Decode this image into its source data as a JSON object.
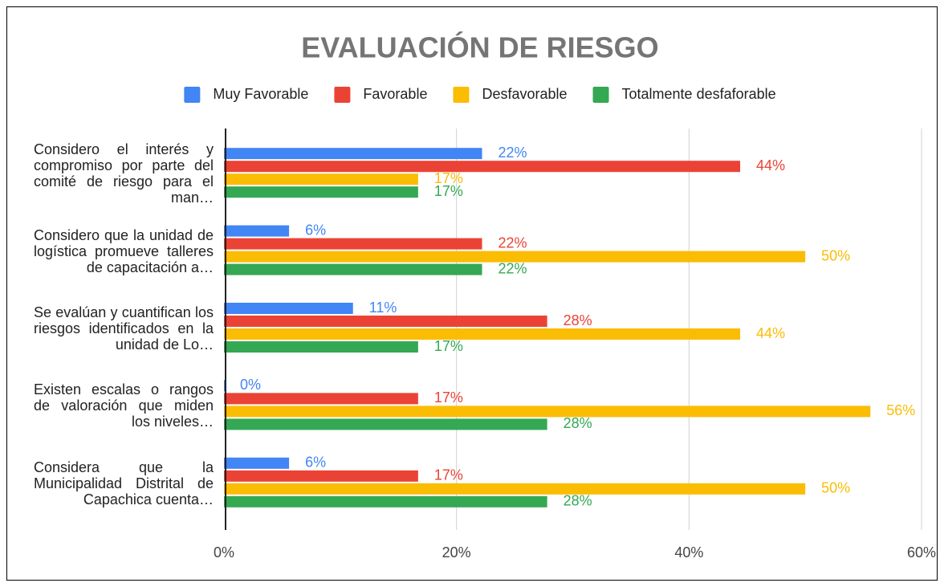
{
  "chart_data": {
    "type": "hbar",
    "title": "EVALUACIÓN DE RIESGO",
    "categories": [
      "Considero el interés y compromiso por parte del comité de riesgo para el man…",
      "Considero que la unidad de logística promueve talleres de capacitación a…",
      "Se evalúan y cuantifican los riesgos identificados en la unidad de Lo…",
      "Existen escalas o rangos de valoración que miden los niveles…",
      "Considera que la Municipalidad Distrital de Capachica cuenta…"
    ],
    "series": [
      {
        "name": "Muy Favorable",
        "color": "#4285f4",
        "values": [
          22.2,
          5.6,
          11.1,
          0,
          5.6
        ],
        "value_labels": [
          "22%",
          "6%",
          "11%",
          "0%",
          "6%"
        ]
      },
      {
        "name": "Favorable",
        "color": "#ea4335",
        "values": [
          44.4,
          22.2,
          27.8,
          16.7,
          16.7
        ],
        "value_labels": [
          "44%",
          "22%",
          "28%",
          "17%",
          "17%"
        ]
      },
      {
        "name": "Desfavorable",
        "color": "#fbbc04",
        "values": [
          16.7,
          50,
          44.4,
          55.6,
          50
        ],
        "value_labels": [
          "17%",
          "50%",
          "44%",
          "56%",
          "50%"
        ]
      },
      {
        "name": "Totalmente desfaforable",
        "color": "#34a853",
        "values": [
          16.7,
          22.2,
          16.7,
          27.8,
          27.8
        ],
        "value_labels": [
          "17%",
          "22%",
          "17%",
          "28%",
          "28%"
        ]
      }
    ],
    "xlim": [
      0,
      60
    ],
    "xticks": [
      {
        "value": 0,
        "label": "0%"
      },
      {
        "value": 20,
        "label": "20%"
      },
      {
        "value": 40,
        "label": "40%"
      },
      {
        "value": 60,
        "label": "60%"
      }
    ],
    "grid": true,
    "legend": "top"
  }
}
